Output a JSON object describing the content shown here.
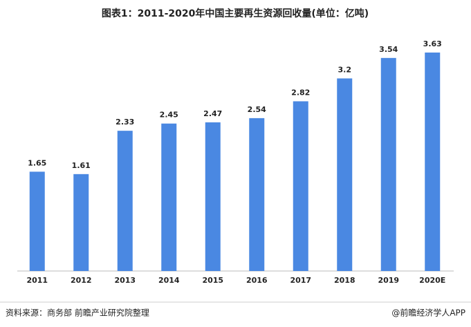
{
  "chart_data": {
    "type": "bar",
    "title": "图表1：2011-2020年中国主要再生资源回收量(单位：亿吨)",
    "categories": [
      "2011",
      "2012",
      "2013",
      "2014",
      "2015",
      "2016",
      "2017",
      "2018",
      "2019",
      "2020E"
    ],
    "values": [
      1.65,
      1.61,
      2.33,
      2.45,
      2.47,
      2.54,
      2.82,
      3.2,
      3.54,
      3.63
    ],
    "color": "#4a88e2",
    "source": "资料来源：商务部 前瞻产业研究院整理",
    "credit": "@前瞻经济学人APP"
  }
}
